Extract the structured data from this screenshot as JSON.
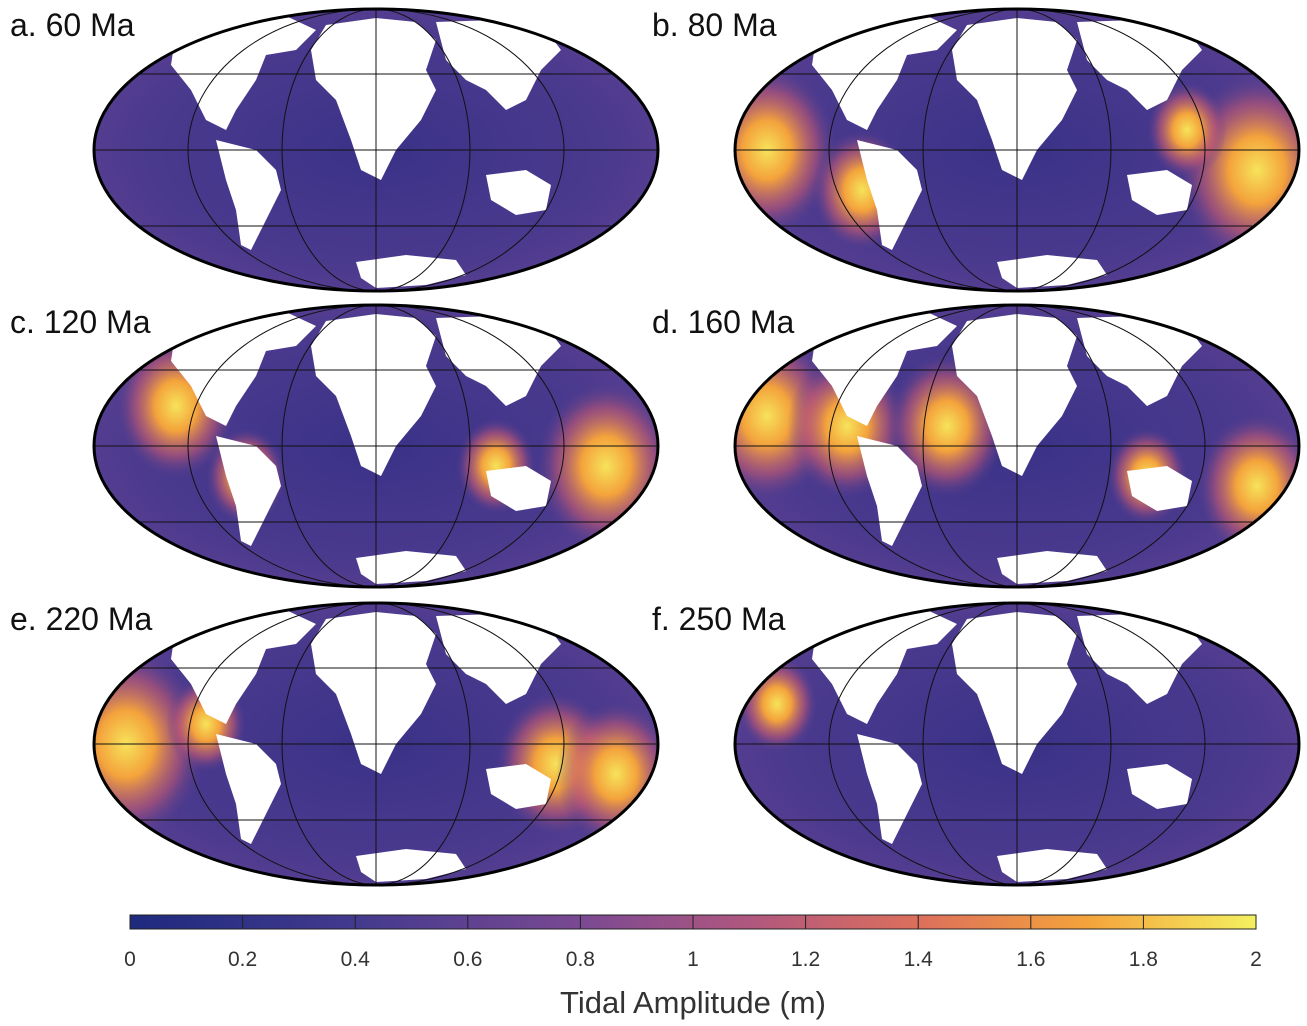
{
  "panels": [
    {
      "label": "a. 60 Ma"
    },
    {
      "label": "b. 80 Ma"
    },
    {
      "label": "c. 120 Ma"
    },
    {
      "label": "d. 160 Ma"
    },
    {
      "label": "e. 220 Ma"
    },
    {
      "label": "f. 250 Ma"
    }
  ],
  "colorbar": {
    "label": "Tidal Amplitude (m)",
    "lim": [
      0,
      2
    ],
    "ticks": [
      0,
      0.2,
      0.4,
      0.6,
      0.8,
      1,
      1.2,
      1.4,
      1.6,
      1.8,
      2
    ]
  }
}
